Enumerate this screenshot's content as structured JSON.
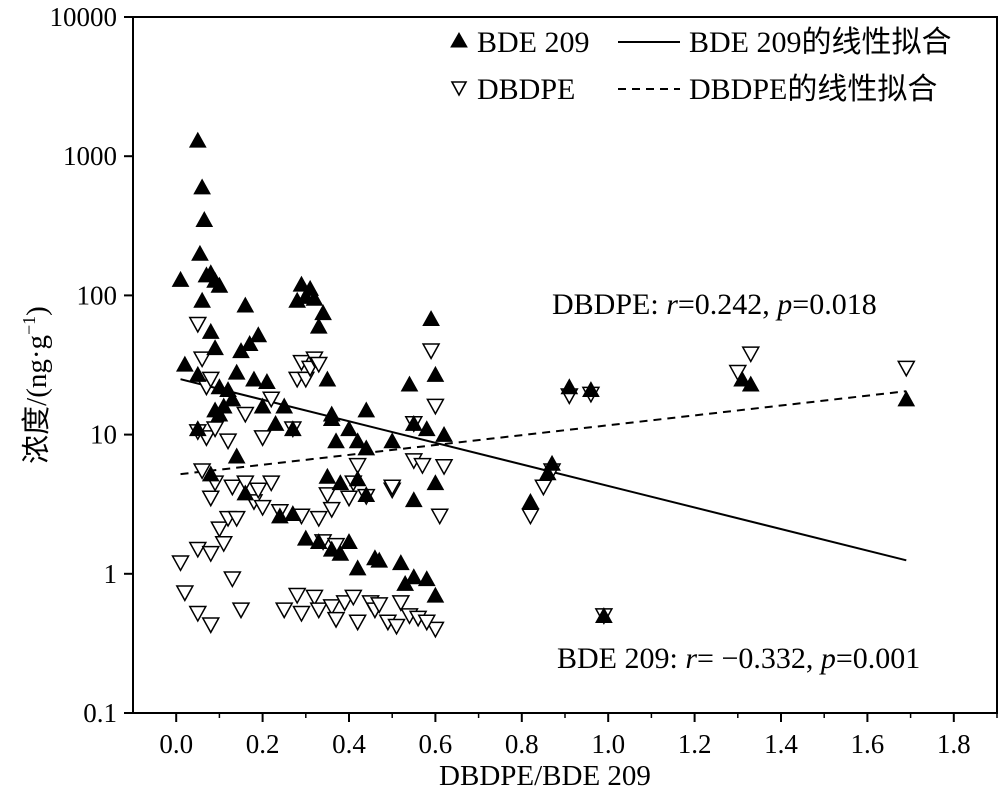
{
  "chart_data": {
    "type": "scatter",
    "title": "",
    "xlabel": "DBDPE/BDE 209",
    "ylabel": "浓度/(ng·g",
    "ylabel_sup": "−1",
    "ylabel_close": ")",
    "xlim": [
      -0.1,
      1.9
    ],
    "ylim": [
      0.1,
      10000
    ],
    "yscale": "log",
    "x_ticks": [
      "0.0",
      "0.2",
      "0.4",
      "0.6",
      "0.8",
      "1.0",
      "1.2",
      "1.4",
      "1.6",
      "1.8"
    ],
    "x_tick_values": [
      0,
      0.2,
      0.4,
      0.6,
      0.8,
      1.0,
      1.2,
      1.4,
      1.6,
      1.8
    ],
    "y_ticks": [
      "0.1",
      "1",
      "10",
      "100",
      "1000",
      "10000"
    ],
    "y_tick_values": [
      0.1,
      1,
      10,
      100,
      1000,
      10000
    ],
    "grid": false,
    "legend_position": "top-right",
    "legend": {
      "bde_marker": "BDE 209",
      "bde_fit": "BDE 209的线性拟合",
      "dbdpe_marker": "DBDPE",
      "dbdpe_fit": "DBDPE的线性拟合"
    },
    "annotations": {
      "dbdpe": {
        "name": "DBDPE: ",
        "r_sym": "r",
        "r_val": "=0.242, ",
        "p_sym": "p",
        "p_val": "=0.018"
      },
      "bde": {
        "name": "BDE 209: ",
        "r_sym": "r",
        "r_val": "= −0.332, ",
        "p_sym": "p",
        "p_val": "=0.001"
      }
    },
    "series": [
      {
        "name": "BDE 209",
        "marker": "filled-triangle-up",
        "points": [
          [
            0.01,
            130
          ],
          [
            0.02,
            32
          ],
          [
            0.05,
            1300
          ],
          [
            0.06,
            600
          ],
          [
            0.065,
            350
          ],
          [
            0.055,
            200
          ],
          [
            0.07,
            140
          ],
          [
            0.06,
            92
          ],
          [
            0.05,
            27
          ],
          [
            0.08,
            145
          ],
          [
            0.09,
            128
          ],
          [
            0.1,
            118
          ],
          [
            0.08,
            55
          ],
          [
            0.09,
            42
          ],
          [
            0.1,
            22
          ],
          [
            0.12,
            21
          ],
          [
            0.11,
            16
          ],
          [
            0.13,
            18
          ],
          [
            0.09,
            15
          ],
          [
            0.1,
            14
          ],
          [
            0.05,
            11
          ],
          [
            0.14,
            28
          ],
          [
            0.15,
            40
          ],
          [
            0.16,
            85
          ],
          [
            0.17,
            45
          ],
          [
            0.19,
            52
          ],
          [
            0.18,
            25
          ],
          [
            0.21,
            24
          ],
          [
            0.2,
            16
          ],
          [
            0.23,
            12
          ],
          [
            0.25,
            16
          ],
          [
            0.27,
            11
          ],
          [
            0.28,
            92
          ],
          [
            0.29,
            120
          ],
          [
            0.3,
            98
          ],
          [
            0.31,
            112
          ],
          [
            0.32,
            95
          ],
          [
            0.34,
            75
          ],
          [
            0.33,
            60
          ],
          [
            0.35,
            25
          ],
          [
            0.36,
            14
          ],
          [
            0.37,
            9
          ],
          [
            0.36,
            13
          ],
          [
            0.35,
            5
          ],
          [
            0.38,
            4.5
          ],
          [
            0.4,
            11
          ],
          [
            0.42,
            9
          ],
          [
            0.44,
            15
          ],
          [
            0.44,
            8
          ],
          [
            0.5,
            9
          ],
          [
            0.52,
            1.2
          ],
          [
            0.53,
            0.85
          ],
          [
            0.55,
            0.95
          ],
          [
            0.58,
            0.92
          ],
          [
            0.6,
            0.7
          ],
          [
            0.55,
            3.4
          ],
          [
            0.6,
            4.5
          ],
          [
            0.55,
            12
          ],
          [
            0.58,
            11
          ],
          [
            0.62,
            10
          ],
          [
            0.59,
            68
          ],
          [
            0.6,
            27
          ],
          [
            0.54,
            23
          ],
          [
            0.14,
            7
          ],
          [
            0.16,
            3.8
          ],
          [
            0.24,
            2.6
          ],
          [
            0.27,
            2.7
          ],
          [
            0.3,
            1.8
          ],
          [
            0.33,
            1.7
          ],
          [
            0.36,
            1.5
          ],
          [
            0.38,
            1.4
          ],
          [
            0.4,
            1.7
          ],
          [
            0.42,
            1.1
          ],
          [
            0.46,
            1.3
          ],
          [
            0.47,
            1.25
          ],
          [
            0.44,
            3.7
          ],
          [
            0.42,
            4.8
          ],
          [
            0.08,
            5.2
          ],
          [
            0.82,
            3.3
          ],
          [
            0.86,
            5.3
          ],
          [
            0.87,
            6.2
          ],
          [
            0.91,
            22
          ],
          [
            0.96,
            21
          ],
          [
            0.99,
            0.5
          ],
          [
            1.31,
            25
          ],
          [
            1.33,
            23
          ],
          [
            1.69,
            18
          ]
        ]
      },
      {
        "name": "DBDPE",
        "marker": "open-triangle-down",
        "points": [
          [
            0.01,
            1.2
          ],
          [
            0.02,
            0.73
          ],
          [
            0.05,
            0.52
          ],
          [
            0.08,
            0.43
          ],
          [
            0.05,
            1.5
          ],
          [
            0.08,
            1.4
          ],
          [
            0.1,
            2.1
          ],
          [
            0.11,
            1.65
          ],
          [
            0.12,
            2.5
          ],
          [
            0.13,
            0.92
          ],
          [
            0.15,
            0.55
          ],
          [
            0.06,
            5.5
          ],
          [
            0.08,
            3.5
          ],
          [
            0.09,
            4.5
          ],
          [
            0.13,
            4.2
          ],
          [
            0.16,
            4.5
          ],
          [
            0.18,
            3.3
          ],
          [
            0.19,
            4
          ],
          [
            0.2,
            3
          ],
          [
            0.22,
            4.5
          ],
          [
            0.24,
            2.8
          ],
          [
            0.25,
            0.55
          ],
          [
            0.28,
            0.7
          ],
          [
            0.29,
            0.52
          ],
          [
            0.32,
            0.68
          ],
          [
            0.33,
            0.55
          ],
          [
            0.36,
            0.58
          ],
          [
            0.37,
            0.47
          ],
          [
            0.39,
            0.62
          ],
          [
            0.41,
            0.68
          ],
          [
            0.42,
            0.45
          ],
          [
            0.45,
            0.62
          ],
          [
            0.46,
            0.55
          ],
          [
            0.47,
            0.6
          ],
          [
            0.49,
            0.45
          ],
          [
            0.51,
            0.42
          ],
          [
            0.52,
            0.62
          ],
          [
            0.54,
            0.5
          ],
          [
            0.56,
            0.48
          ],
          [
            0.6,
            0.4
          ],
          [
            0.58,
            0.45
          ],
          [
            0.05,
            10.5
          ],
          [
            0.07,
            9.5
          ],
          [
            0.09,
            11
          ],
          [
            0.12,
            9
          ],
          [
            0.16,
            14
          ],
          [
            0.2,
            9.5
          ],
          [
            0.22,
            18
          ],
          [
            0.27,
            11
          ],
          [
            0.28,
            25
          ],
          [
            0.29,
            33
          ],
          [
            0.3,
            25
          ],
          [
            0.31,
            30
          ],
          [
            0.32,
            35
          ],
          [
            0.33,
            32
          ],
          [
            0.05,
            62
          ],
          [
            0.06,
            35
          ],
          [
            0.07,
            22
          ],
          [
            0.08,
            25
          ],
          [
            0.29,
            2.6
          ],
          [
            0.33,
            2.5
          ],
          [
            0.34,
            1.7
          ],
          [
            0.35,
            3.7
          ],
          [
            0.36,
            2.9
          ],
          [
            0.37,
            1.6
          ],
          [
            0.4,
            3.5
          ],
          [
            0.41,
            4.5
          ],
          [
            0.42,
            6
          ],
          [
            0.44,
            3.6
          ],
          [
            0.5,
            4
          ],
          [
            0.5,
            4.2
          ],
          [
            0.55,
            6.5
          ],
          [
            0.57,
            6
          ],
          [
            0.61,
            2.6
          ],
          [
            0.62,
            5.9
          ],
          [
            0.55,
            12
          ],
          [
            0.59,
            40
          ],
          [
            0.6,
            16
          ],
          [
            0.14,
            2.5
          ],
          [
            0.82,
            2.6
          ],
          [
            0.85,
            4.2
          ],
          [
            0.87,
            5.5
          ],
          [
            0.91,
            19
          ],
          [
            0.96,
            19.5
          ],
          [
            0.99,
            0.5
          ],
          [
            1.3,
            28
          ],
          [
            1.33,
            38
          ],
          [
            1.69,
            30
          ]
        ]
      }
    ],
    "fits": [
      {
        "name": "BDE 209的线性拟合",
        "style": "solid",
        "x": [
          0.01,
          1.69
        ],
        "y": [
          25,
          1.25
        ]
      },
      {
        "name": "DBDPE的线性拟合",
        "style": "dashed",
        "x": [
          0.01,
          1.69
        ],
        "y": [
          5.2,
          20.5
        ]
      }
    ]
  }
}
